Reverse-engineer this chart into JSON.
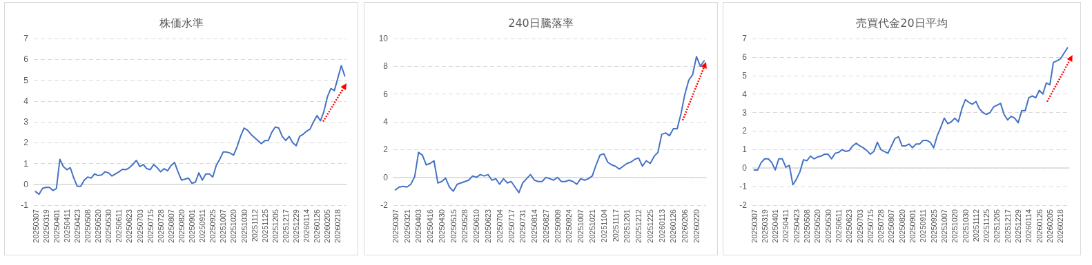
{
  "chart_data": [
    {
      "type": "line",
      "title": "株価水準",
      "color": "#4472c4",
      "grid": "y",
      "ylim": [
        -1,
        7
      ],
      "yticks": [
        -1,
        0,
        1,
        2,
        3,
        4,
        5,
        6,
        7
      ],
      "categories": [
        "20250307",
        null,
        null,
        "20250319",
        null,
        null,
        "20250401",
        null,
        null,
        "20250411",
        null,
        null,
        "20250423",
        null,
        null,
        "20250508",
        null,
        null,
        "20250520",
        null,
        null,
        "20250530",
        null,
        null,
        "20250611",
        null,
        null,
        "20250623",
        null,
        null,
        "20250703",
        null,
        null,
        "20250715",
        null,
        null,
        "20250728",
        null,
        null,
        "20250807",
        null,
        null,
        "20250820",
        null,
        null,
        "20250901",
        null,
        null,
        "20250911",
        null,
        null,
        "20250925",
        null,
        null,
        "20251007",
        null,
        null,
        "20251020",
        null,
        null,
        "20251030",
        null,
        null,
        "20251112",
        null,
        null,
        "20251125",
        null,
        null,
        "20251205",
        null,
        null,
        "20251217",
        null,
        null,
        "20251229",
        null,
        null,
        "20260114",
        null,
        null,
        "20260126",
        null,
        null,
        "20260205",
        null,
        null,
        "20260218",
        null,
        null
      ],
      "values": [
        -0.35,
        -0.48,
        -0.2,
        -0.15,
        -0.15,
        -0.3,
        -0.2,
        1.2,
        0.85,
        0.7,
        0.8,
        0.3,
        -0.1,
        -0.1,
        0.2,
        0.35,
        0.3,
        0.5,
        0.42,
        0.45,
        0.6,
        0.55,
        0.4,
        0.5,
        0.6,
        0.72,
        0.7,
        0.8,
        0.95,
        1.15,
        0.85,
        0.95,
        0.75,
        0.7,
        0.95,
        0.8,
        0.6,
        0.75,
        0.65,
        0.9,
        1.05,
        0.6,
        0.2,
        0.25,
        0.3,
        0.05,
        0.1,
        0.55,
        0.2,
        0.5,
        0.5,
        0.35,
        0.9,
        1.2,
        1.55,
        1.55,
        1.5,
        1.4,
        1.8,
        2.3,
        2.7,
        2.6,
        2.4,
        2.25,
        2.1,
        1.95,
        2.1,
        2.1,
        2.5,
        2.75,
        2.7,
        2.3,
        2.1,
        2.3,
        2.0,
        1.85,
        2.3,
        2.4,
        2.55,
        2.65,
        3.0,
        3.3,
        3.05,
        3.5,
        4.2,
        4.6,
        4.5,
        5.1,
        5.7,
        5.2
      ]
    },
    {
      "type": "line",
      "title": "240日騰落率",
      "color": "#4472c4",
      "grid": "y",
      "ylim": [
        -2,
        10
      ],
      "yticks": [
        -2,
        0,
        2,
        4,
        6,
        8,
        10
      ],
      "categories": [
        "20250307",
        null,
        null,
        "20250321",
        null,
        null,
        "20250403",
        null,
        null,
        "20250416",
        null,
        null,
        "20250430",
        null,
        null,
        "20250515",
        null,
        null,
        "20250528",
        null,
        null,
        "20250610",
        null,
        null,
        "20250623",
        null,
        null,
        "20250704",
        null,
        null,
        "20250717",
        null,
        null,
        "20250731",
        null,
        null,
        "20250814",
        null,
        null,
        "20250827",
        null,
        null,
        "20250909",
        null,
        null,
        "20250924",
        null,
        null,
        "20251007",
        null,
        null,
        "20251021",
        null,
        null,
        "20251104",
        null,
        null,
        "20251117",
        null,
        null,
        "20251201",
        null,
        null,
        "20251212",
        null,
        null,
        "20251225",
        null,
        null,
        "20260113",
        null,
        null,
        "20260126",
        null,
        null,
        "20260206",
        null,
        null,
        "20260220",
        null,
        null
      ],
      "values": [
        -0.9,
        -0.7,
        -0.65,
        -0.7,
        -0.5,
        0.05,
        1.8,
        1.6,
        0.9,
        1.0,
        1.2,
        -0.4,
        -0.3,
        -0.05,
        -0.7,
        -1.0,
        -0.5,
        -0.4,
        -0.3,
        -0.2,
        0.1,
        0.0,
        0.2,
        0.1,
        0.2,
        -0.2,
        -0.1,
        -0.5,
        -0.1,
        -0.4,
        -0.3,
        -0.7,
        -1.1,
        -0.4,
        -0.1,
        0.2,
        -0.2,
        -0.3,
        -0.3,
        0.0,
        -0.1,
        -0.2,
        0.0,
        -0.3,
        -0.3,
        -0.2,
        -0.3,
        -0.5,
        -0.1,
        -0.2,
        -0.1,
        0.1,
        0.9,
        1.6,
        1.7,
        1.1,
        0.9,
        0.8,
        0.6,
        0.8,
        1.0,
        1.1,
        1.3,
        1.4,
        0.8,
        1.2,
        1.0,
        1.5,
        1.8,
        3.1,
        3.2,
        3.0,
        3.5,
        3.5,
        4.6,
        6.0,
        7.0,
        7.4,
        8.7,
        8.0,
        8.4
      ]
    },
    {
      "type": "line",
      "title": "売買代金20日平均",
      "color": "#4472c4",
      "grid": "y",
      "ylim": [
        -2,
        7
      ],
      "yticks": [
        -2,
        -1,
        0,
        1,
        2,
        3,
        4,
        5,
        6,
        7
      ],
      "categories": [
        "20250307",
        null,
        null,
        "20250319",
        null,
        null,
        "20250401",
        null,
        null,
        "20250411",
        null,
        null,
        "20250423",
        null,
        null,
        "20250508",
        null,
        null,
        "20250520",
        null,
        null,
        "20250530",
        null,
        null,
        "20250611",
        null,
        null,
        "20250623",
        null,
        null,
        "20250703",
        null,
        null,
        "20250715",
        null,
        null,
        "20250728",
        null,
        null,
        "20250807",
        null,
        null,
        "20250820",
        null,
        null,
        "20250901",
        null,
        null,
        "20250911",
        null,
        null,
        "20250925",
        null,
        null,
        "20251007",
        null,
        null,
        "20251020",
        null,
        null,
        "20251030",
        null,
        null,
        "20251112",
        null,
        null,
        "20251125",
        null,
        null,
        "20251205",
        null,
        null,
        "20251217",
        null,
        null,
        "20251229",
        null,
        null,
        "20260114",
        null,
        null,
        "20260126",
        null,
        null,
        "20260205",
        null,
        null,
        "20260218",
        null,
        null
      ],
      "values": [
        -0.1,
        -0.1,
        0.3,
        0.5,
        0.5,
        0.3,
        -0.1,
        0.5,
        0.5,
        0.05,
        0.15,
        -0.9,
        -0.6,
        -0.2,
        0.45,
        0.4,
        0.65,
        0.5,
        0.6,
        0.65,
        0.75,
        0.75,
        0.5,
        0.8,
        0.85,
        1.0,
        0.9,
        0.95,
        1.2,
        1.35,
        1.2,
        1.1,
        0.95,
        0.75,
        0.9,
        1.4,
        1.0,
        0.9,
        0.8,
        1.2,
        1.6,
        1.7,
        1.2,
        1.2,
        1.3,
        1.1,
        1.3,
        1.3,
        1.5,
        1.5,
        1.4,
        1.1,
        1.75,
        2.2,
        2.7,
        2.4,
        2.5,
        2.7,
        2.5,
        3.2,
        3.7,
        3.55,
        3.45,
        3.6,
        3.2,
        3.0,
        2.9,
        3.0,
        3.3,
        3.4,
        3.5,
        2.9,
        2.6,
        2.8,
        2.7,
        2.45,
        3.1,
        3.1,
        3.8,
        3.9,
        3.8,
        4.2,
        4.0,
        4.6,
        4.5,
        5.7,
        5.8,
        5.9,
        6.2,
        6.5
      ]
    }
  ]
}
